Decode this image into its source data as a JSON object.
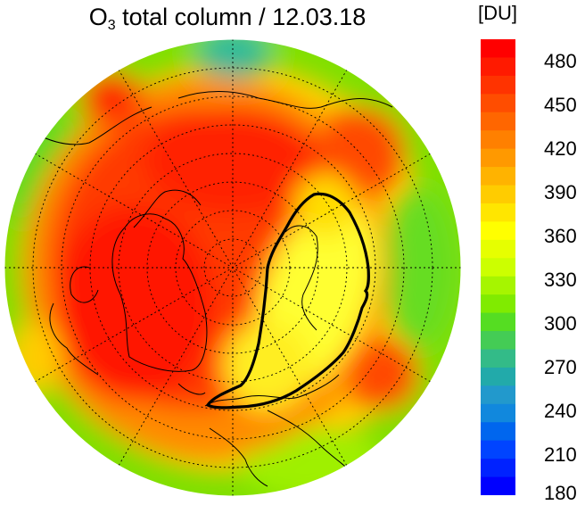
{
  "title": {
    "species_base": "O",
    "species_sub": "3",
    "rest": " total column / 12.03.18"
  },
  "colorbar": {
    "unit": "[DU]",
    "ticks": [
      "480",
      "450",
      "420",
      "390",
      "360",
      "330",
      "300",
      "270",
      "240",
      "210",
      "180"
    ],
    "colors": [
      "#ff0000",
      "#ff1a00",
      "#ff3300",
      "#ff4d00",
      "#ff6600",
      "#ff8000",
      "#ff9900",
      "#ffb300",
      "#ffcc00",
      "#ffe600",
      "#ffff00",
      "#e6ff00",
      "#ccff00",
      "#a6f500",
      "#80eb00",
      "#55dd22",
      "#44cc55",
      "#33bb88",
      "#22aaaa",
      "#2299cc",
      "#1188dd",
      "#0066ee",
      "#0044ff",
      "#0022ff",
      "#0000ff"
    ]
  },
  "map": {
    "projection": "north polar stereographic",
    "ozone_hole_contour": "low-ozone region outlined in black over Siberia",
    "palette": {
      "red": "#ff1a00",
      "orange": "#ff6a00",
      "yellow_orange": "#ffc400",
      "yellow": "#ffff00",
      "green_yellow": "#b9f500",
      "green": "#55dd22",
      "teal": "#33bb99"
    }
  }
}
